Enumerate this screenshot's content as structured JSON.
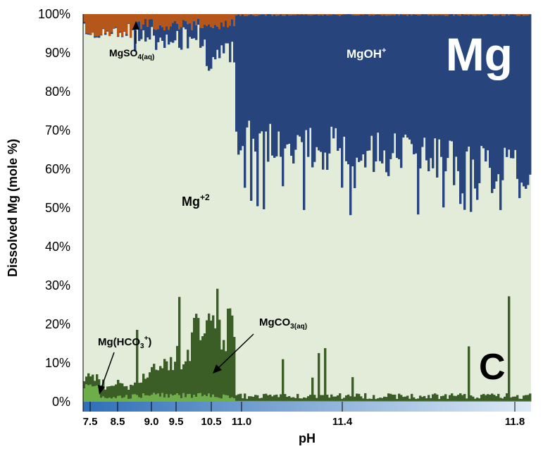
{
  "chart_data": {
    "type": "area",
    "stacked": true,
    "title": "",
    "xlabel": "pH",
    "ylabel": "Dissolved Mg (mole %)",
    "ylim": [
      0,
      100
    ],
    "yticks": [
      "0%",
      "10%",
      "20%",
      "30%",
      "40%",
      "50%",
      "60%",
      "70%",
      "80%",
      "90%",
      "100%"
    ],
    "xticks": [
      "7.5",
      "8.5",
      "9.0",
      "9.5",
      "10.5",
      "11.0",
      "11.4",
      "11.8"
    ],
    "grid": false,
    "colors": {
      "mg2": "#e2ecd9",
      "mgoh": "#27457c",
      "mgso4": "#b5561a",
      "mgco3": "#3b5e27",
      "mghco3": "#6eae48",
      "phbar_start": "#2f6fb8",
      "phbar_end": "#ddeaf6"
    },
    "series_labels": {
      "mg2": "Mg+2",
      "mgoh": "MgOH+",
      "mgso4": "MgSO4(aq)",
      "mgco3": "MgCO3(aq)",
      "mghco3": "Mg(HCO3)+"
    },
    "panel_labels": {
      "top": "Mg",
      "bottom": "C"
    },
    "segments_ph_approx": {
      "pH_7.5_to_8.5": {
        "MgSO4_pct": 4,
        "MgOH_pct": 0,
        "MgCO3_pct": 2,
        "MgHCO3_pct": 2
      },
      "pH_9.0_to_10.5": {
        "MgSO4_pct": 3,
        "MgOH_pct": 3,
        "MgCO3_pct_peak": 28
      },
      "pH_11.0_to_11.8": {
        "MgSO4_pct": 0.5,
        "MgOH_pct": 35,
        "MgOH_pct_peak": 52,
        "MgCO3_pct_peak": 27
      }
    }
  }
}
